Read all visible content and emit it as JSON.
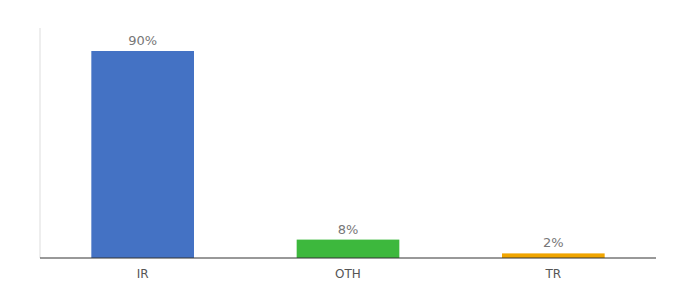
{
  "chart_data": {
    "type": "bar",
    "categories": [
      "IR",
      "OTH",
      "TR"
    ],
    "values": [
      90,
      8,
      2
    ],
    "value_labels": [
      "90%",
      "8%",
      "2%"
    ],
    "colors": [
      "#4472c4",
      "#3db83d",
      "#f0a500"
    ],
    "ylim": [
      0,
      100
    ],
    "data_labels": true,
    "tick_labels": "x",
    "grid": false
  }
}
